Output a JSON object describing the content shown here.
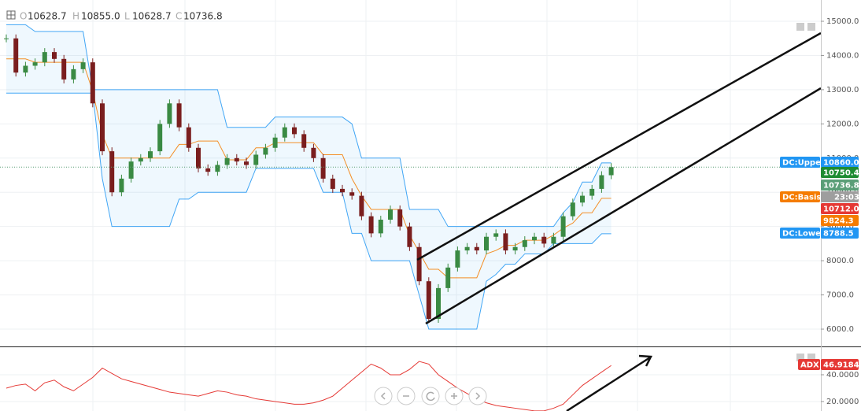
{
  "header": {
    "open_label": "O",
    "open": "10628.7",
    "high_label": "H",
    "high": "10855.0",
    "low_label": "L",
    "low": "10628.7",
    "close_label": "C",
    "close": "10736.8"
  },
  "chart_data": [
    {
      "type": "candlestick",
      "up_color": "#3a8a43",
      "down_color": "#7a1e1e",
      "close": [
        14500,
        13500,
        13700,
        13800,
        14100,
        13900,
        13300,
        13600,
        13800,
        12600,
        11200,
        10000,
        10400,
        10900,
        11000,
        11200,
        12000,
        12600,
        11900,
        11300,
        10700,
        10600,
        10800,
        11000,
        10900,
        10800,
        11100,
        11300,
        11600,
        11900,
        11700,
        11300,
        11000,
        10400,
        10100,
        10000,
        9900,
        9300,
        8800,
        9200,
        9500,
        9000,
        8400,
        7400,
        6300,
        7200,
        7800,
        8300,
        8400,
        8300,
        8700,
        8800,
        8300,
        8400,
        8600,
        8700,
        8500,
        8700,
        9300,
        9700,
        9900,
        10100,
        10500,
        10736.8
      ],
      "series": [
        {
          "name": "DC:Upper",
          "color": "#2196f3",
          "last_label": "10860.0",
          "values": [
            14900,
            14900,
            14900,
            14700,
            14700,
            14700,
            14700,
            14700,
            14700,
            13000,
            13000,
            13000,
            13000,
            13000,
            13000,
            13000,
            13000,
            13000,
            13000,
            13000,
            13000,
            13000,
            13000,
            11900,
            11900,
            11900,
            11900,
            11900,
            12200,
            12200,
            12200,
            12200,
            12200,
            12200,
            12200,
            12200,
            12000,
            11000,
            11000,
            11000,
            11000,
            11000,
            9500,
            9500,
            9500,
            9500,
            9000,
            9000,
            9000,
            9000,
            9000,
            9000,
            9000,
            9000,
            9000,
            9000,
            9000,
            9000,
            9400,
            9700,
            10300,
            10300,
            10860,
            10860
          ]
        },
        {
          "name": "DC:Basis",
          "color": "#f57c00",
          "last_label": "9824.3",
          "values": [
            13900,
            13900,
            13900,
            13800,
            13800,
            13800,
            13800,
            13800,
            13800,
            12950,
            11700,
            11000,
            11000,
            11000,
            11000,
            11000,
            11000,
            11000,
            11400,
            11400,
            11500,
            11500,
            11500,
            10950,
            10950,
            10950,
            11300,
            11300,
            11450,
            11450,
            11450,
            11450,
            11450,
            11100,
            11100,
            11100,
            10400,
            9900,
            9500,
            9500,
            9500,
            9500,
            8750,
            8250,
            7750,
            7750,
            7500,
            7500,
            7500,
            7500,
            8200,
            8300,
            8450,
            8450,
            8600,
            8600,
            8600,
            8750,
            8950,
            9100,
            9400,
            9400,
            9824.3,
            9824.3
          ]
        },
        {
          "name": "DC:Lower",
          "color": "#2196f3",
          "last_label": "8788.5",
          "values": [
            12900,
            12900,
            12900,
            12900,
            12900,
            12900,
            12900,
            12900,
            12900,
            12900,
            10400,
            9000,
            9000,
            9000,
            9000,
            9000,
            9000,
            9000,
            9800,
            9800,
            10000,
            10000,
            10000,
            10000,
            10000,
            10000,
            10700,
            10700,
            10700,
            10700,
            10700,
            10700,
            10700,
            10000,
            10000,
            10000,
            8800,
            8800,
            8000,
            8000,
            8000,
            8000,
            8000,
            7000,
            6000,
            6000,
            6000,
            6000,
            6000,
            6000,
            7400,
            7600,
            7900,
            7900,
            8200,
            8200,
            8200,
            8500,
            8500,
            8500,
            8500,
            8500,
            8788.5,
            8788.5
          ]
        }
      ],
      "price_labels": [
        {
          "value": 10750.4,
          "label": "10750.4",
          "color": "#1e8c32"
        },
        {
          "value": 10736.8,
          "label": "10736.8",
          "color": "#5a9e77"
        },
        {
          "value": 10712,
          "label": "10712.0",
          "color": "#e53935"
        }
      ],
      "countdown": "23:03",
      "ylim": [
        5494,
        15622
      ],
      "yticks": [
        {
          "value": 6000,
          "label": "6000.0"
        },
        {
          "value": 7000,
          "label": "7000.0"
        },
        {
          "value": 8000,
          "label": "8000.0"
        },
        {
          "value": 9000,
          "label": "9000.0"
        },
        {
          "value": 10000,
          "label": "10000.0"
        },
        {
          "value": 11000,
          "label": "11000.0"
        },
        {
          "value": 12000,
          "label": "12000.0"
        },
        {
          "value": 13000,
          "label": "13000.0"
        },
        {
          "value": 14000,
          "label": "14000.0"
        },
        {
          "value": 15000,
          "label": "15000.0"
        }
      ],
      "grid": true
    },
    {
      "type": "line",
      "name": "ADX",
      "color": "#e53935",
      "last_label": "46.9184",
      "values": [
        30,
        32,
        33,
        28,
        34,
        36,
        31,
        28,
        33,
        38,
        45,
        41,
        37,
        35,
        33,
        31,
        29,
        27,
        26,
        25,
        24,
        26,
        28,
        27,
        25,
        24,
        22,
        21,
        20,
        19,
        18,
        18,
        19,
        21,
        24,
        30,
        36,
        42,
        48,
        45,
        40,
        40,
        44,
        50,
        48,
        40,
        35,
        30,
        26,
        22,
        19,
        17,
        16,
        15,
        14,
        13,
        13,
        15,
        18,
        25,
        32,
        37,
        42,
        46.9184
      ],
      "ylim": [
        12.9,
        60.6
      ],
      "yticks": [
        {
          "value": 20,
          "label": "20.0000"
        },
        {
          "value": 40,
          "label": "40.0000"
        }
      ],
      "grid": true
    }
  ]
}
